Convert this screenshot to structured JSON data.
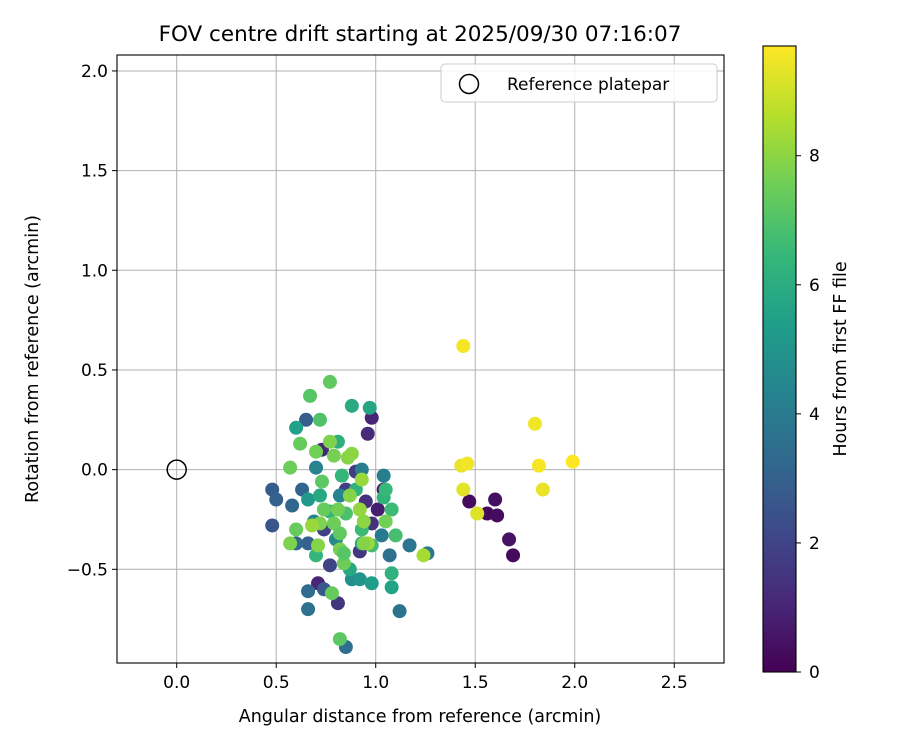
{
  "chart_data": {
    "type": "scatter",
    "title": "FOV centre drift starting at 2025/09/30 07:16:07",
    "xlabel": "Angular distance from reference (arcmin)",
    "ylabel": "Rotation from reference (arcmin)",
    "xlim": [
      -0.3,
      2.75
    ],
    "ylim": [
      -0.97,
      2.08
    ],
    "xticks": [
      0.0,
      0.5,
      1.0,
      1.5,
      2.0,
      2.5
    ],
    "xtick_labels": [
      "0.0",
      "0.5",
      "1.0",
      "1.5",
      "2.0",
      "2.5"
    ],
    "yticks": [
      -0.5,
      0.0,
      0.5,
      1.0,
      1.5,
      2.0
    ],
    "ytick_labels": [
      "−0.5",
      "0.0",
      "0.5",
      "1.0",
      "1.5",
      "2.0"
    ],
    "grid": true,
    "legend": {
      "position": "top-right",
      "entries": [
        "Reference platepar"
      ]
    },
    "reference_point": {
      "x": 0.0,
      "y": 0.0,
      "label": "Reference platepar"
    },
    "colorbar": {
      "label": "Hours from first FF file",
      "range": [
        0,
        9.7
      ],
      "ticks": [
        0,
        2,
        4,
        6,
        8
      ],
      "tick_labels": [
        "0",
        "2",
        "4",
        "6",
        "8"
      ],
      "colormap": "viridis",
      "colors": [
        "#440154",
        "#482878",
        "#3e4989",
        "#31688e",
        "#26828e",
        "#1f9e89",
        "#35b779",
        "#6ece58",
        "#b5de2b",
        "#fde725"
      ]
    },
    "points": [
      {
        "x": 1.47,
        "y": -0.16,
        "h": 0.3
      },
      {
        "x": 1.56,
        "y": -0.22,
        "h": 0.2
      },
      {
        "x": 1.6,
        "y": -0.15,
        "h": 0.4
      },
      {
        "x": 1.61,
        "y": -0.23,
        "h": 0.3
      },
      {
        "x": 1.67,
        "y": -0.35,
        "h": 0.5
      },
      {
        "x": 1.69,
        "y": -0.43,
        "h": 0.3
      },
      {
        "x": 1.04,
        "y": -0.1,
        "h": 0.6
      },
      {
        "x": 1.01,
        "y": -0.2,
        "h": 0.8
      },
      {
        "x": 0.98,
        "y": 0.26,
        "h": 1.0
      },
      {
        "x": 0.96,
        "y": 0.18,
        "h": 1.2
      },
      {
        "x": 0.73,
        "y": 0.1,
        "h": 1.1
      },
      {
        "x": 0.71,
        "y": -0.57,
        "h": 1.0
      },
      {
        "x": 0.81,
        "y": -0.67,
        "h": 1.5
      },
      {
        "x": 0.92,
        "y": -0.41,
        "h": 1.6
      },
      {
        "x": 0.98,
        "y": -0.27,
        "h": 1.4
      },
      {
        "x": 0.95,
        "y": -0.16,
        "h": 1.3
      },
      {
        "x": 0.74,
        "y": -0.3,
        "h": 1.9
      },
      {
        "x": 0.77,
        "y": -0.48,
        "h": 2.0
      },
      {
        "x": 0.85,
        "y": -0.1,
        "h": 1.8
      },
      {
        "x": 0.9,
        "y": -0.01,
        "h": 1.7
      },
      {
        "x": 0.48,
        "y": -0.1,
        "h": 2.8
      },
      {
        "x": 0.5,
        "y": -0.15,
        "h": 3.0
      },
      {
        "x": 0.48,
        "y": -0.28,
        "h": 2.6
      },
      {
        "x": 0.58,
        "y": -0.18,
        "h": 3.2
      },
      {
        "x": 0.65,
        "y": 0.25,
        "h": 2.9
      },
      {
        "x": 0.66,
        "y": -0.37,
        "h": 3.0
      },
      {
        "x": 0.6,
        "y": -0.37,
        "h": 3.3
      },
      {
        "x": 0.63,
        "y": -0.1,
        "h": 3.1
      },
      {
        "x": 0.74,
        "y": -0.6,
        "h": 2.7
      },
      {
        "x": 0.66,
        "y": -0.61,
        "h": 3.4
      },
      {
        "x": 0.66,
        "y": -0.7,
        "h": 3.6
      },
      {
        "x": 0.85,
        "y": -0.89,
        "h": 3.5
      },
      {
        "x": 1.12,
        "y": -0.71,
        "h": 3.7
      },
      {
        "x": 1.17,
        "y": -0.38,
        "h": 3.8
      },
      {
        "x": 1.26,
        "y": -0.42,
        "h": 3.9
      },
      {
        "x": 1.07,
        "y": -0.43,
        "h": 3.6
      },
      {
        "x": 1.03,
        "y": -0.33,
        "h": 4.0
      },
      {
        "x": 1.04,
        "y": -0.03,
        "h": 4.2
      },
      {
        "x": 0.93,
        "y": 0.0,
        "h": 4.1
      },
      {
        "x": 0.82,
        "y": -0.13,
        "h": 4.3
      },
      {
        "x": 0.7,
        "y": 0.01,
        "h": 4.4
      },
      {
        "x": 0.69,
        "y": -0.26,
        "h": 4.5
      },
      {
        "x": 0.8,
        "y": -0.35,
        "h": 4.6
      },
      {
        "x": 0.88,
        "y": -0.55,
        "h": 4.8
      },
      {
        "x": 0.92,
        "y": -0.55,
        "h": 5.0
      },
      {
        "x": 0.98,
        "y": -0.57,
        "h": 5.4
      },
      {
        "x": 1.08,
        "y": -0.59,
        "h": 5.6
      },
      {
        "x": 1.08,
        "y": -0.52,
        "h": 6.2
      },
      {
        "x": 0.87,
        "y": -0.5,
        "h": 5.8
      },
      {
        "x": 0.93,
        "y": -0.37,
        "h": 6.0
      },
      {
        "x": 0.97,
        "y": 0.31,
        "h": 5.7
      },
      {
        "x": 0.88,
        "y": 0.32,
        "h": 5.9
      },
      {
        "x": 0.6,
        "y": 0.21,
        "h": 5.5
      },
      {
        "x": 0.81,
        "y": 0.14,
        "h": 6.1
      },
      {
        "x": 0.66,
        "y": -0.15,
        "h": 5.2
      },
      {
        "x": 0.72,
        "y": -0.13,
        "h": 5.8
      },
      {
        "x": 0.77,
        "y": -0.21,
        "h": 6.3
      },
      {
        "x": 0.83,
        "y": -0.03,
        "h": 6.4
      },
      {
        "x": 0.9,
        "y": -0.1,
        "h": 6.2
      },
      {
        "x": 1.04,
        "y": -0.14,
        "h": 6.3
      },
      {
        "x": 1.05,
        "y": -0.1,
        "h": 6.5
      },
      {
        "x": 1.08,
        "y": -0.2,
        "h": 6.6
      },
      {
        "x": 1.1,
        "y": -0.33,
        "h": 6.8
      },
      {
        "x": 0.98,
        "y": -0.38,
        "h": 6.7
      },
      {
        "x": 0.93,
        "y": -0.3,
        "h": 6.6
      },
      {
        "x": 0.85,
        "y": -0.22,
        "h": 6.9
      },
      {
        "x": 0.7,
        "y": -0.43,
        "h": 6.4
      },
      {
        "x": 0.72,
        "y": 0.25,
        "h": 7.0
      },
      {
        "x": 0.67,
        "y": 0.37,
        "h": 7.1
      },
      {
        "x": 0.77,
        "y": 0.44,
        "h": 7.3
      },
      {
        "x": 0.62,
        "y": 0.13,
        "h": 7.4
      },
      {
        "x": 0.57,
        "y": 0.01,
        "h": 7.5
      },
      {
        "x": 0.7,
        "y": 0.09,
        "h": 7.6
      },
      {
        "x": 0.77,
        "y": 0.14,
        "h": 7.8
      },
      {
        "x": 0.79,
        "y": 0.07,
        "h": 7.7
      },
      {
        "x": 0.86,
        "y": 0.06,
        "h": 7.9
      },
      {
        "x": 0.88,
        "y": 0.08,
        "h": 8.0
      },
      {
        "x": 0.73,
        "y": -0.06,
        "h": 7.2
      },
      {
        "x": 0.74,
        "y": -0.2,
        "h": 7.4
      },
      {
        "x": 0.72,
        "y": -0.27,
        "h": 7.8
      },
      {
        "x": 0.79,
        "y": -0.27,
        "h": 7.5
      },
      {
        "x": 0.82,
        "y": -0.32,
        "h": 7.3
      },
      {
        "x": 0.81,
        "y": -0.2,
        "h": 7.6
      },
      {
        "x": 0.87,
        "y": -0.13,
        "h": 7.9
      },
      {
        "x": 0.92,
        "y": -0.2,
        "h": 8.1
      },
      {
        "x": 0.93,
        "y": -0.05,
        "h": 8.2
      },
      {
        "x": 0.96,
        "y": -0.37,
        "h": 8.3
      },
      {
        "x": 0.94,
        "y": -0.37,
        "h": 7.9
      },
      {
        "x": 0.94,
        "y": -0.26,
        "h": 8.0
      },
      {
        "x": 1.05,
        "y": -0.26,
        "h": 7.6
      },
      {
        "x": 1.24,
        "y": -0.43,
        "h": 8.4
      },
      {
        "x": 0.82,
        "y": -0.4,
        "h": 7.7
      },
      {
        "x": 0.84,
        "y": -0.47,
        "h": 7.5
      },
      {
        "x": 0.78,
        "y": -0.62,
        "h": 7.4
      },
      {
        "x": 0.82,
        "y": -0.85,
        "h": 7.2
      },
      {
        "x": 0.71,
        "y": -0.38,
        "h": 7.9
      },
      {
        "x": 0.68,
        "y": -0.28,
        "h": 8.2
      },
      {
        "x": 0.6,
        "y": -0.3,
        "h": 7.4
      },
      {
        "x": 0.57,
        "y": -0.37,
        "h": 7.8
      },
      {
        "x": 0.84,
        "y": -0.42,
        "h": 7.1
      },
      {
        "x": 1.44,
        "y": 0.62,
        "h": 9.6
      },
      {
        "x": 1.43,
        "y": 0.02,
        "h": 9.4
      },
      {
        "x": 1.46,
        "y": 0.03,
        "h": 9.5
      },
      {
        "x": 1.44,
        "y": -0.1,
        "h": 9.3
      },
      {
        "x": 1.51,
        "y": -0.22,
        "h": 9.2
      },
      {
        "x": 1.8,
        "y": 0.23,
        "h": 9.5
      },
      {
        "x": 1.82,
        "y": 0.02,
        "h": 9.6
      },
      {
        "x": 1.84,
        "y": -0.1,
        "h": 9.4
      },
      {
        "x": 1.99,
        "y": 0.04,
        "h": 9.7
      }
    ]
  }
}
